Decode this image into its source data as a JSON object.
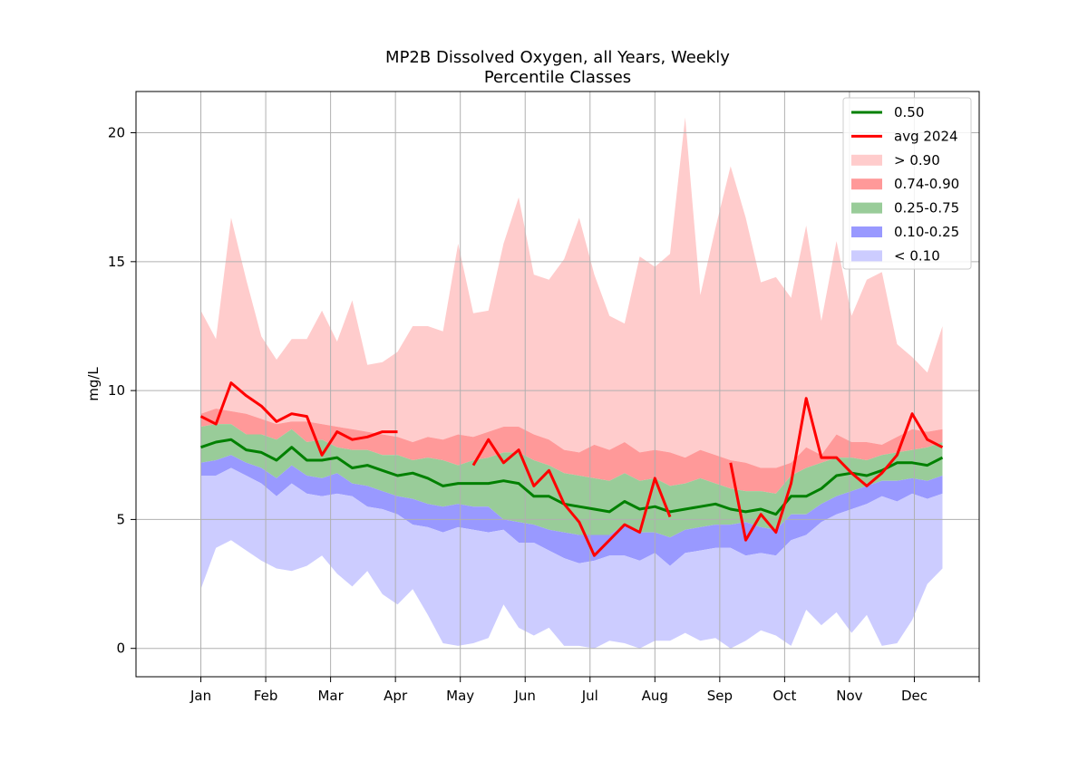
{
  "chart_data": {
    "type": "area",
    "title": "MP2B Dissolved Oxygen, all Years, Weekly",
    "subtitle": "Percentile Classes",
    "xlabel": "",
    "ylabel": "mg/L",
    "ylim": [
      -1.1,
      21.6
    ],
    "xlim": [
      -6,
      72
    ],
    "grid": true,
    "legend_position": "top-right",
    "months": [
      "Jan",
      "Feb",
      "Mar",
      "Apr",
      "May",
      "Jun",
      "Jul",
      "Aug",
      "Sep",
      "Oct",
      "Nov",
      "Dec"
    ],
    "month_positions": [
      0,
      6,
      12,
      18,
      24,
      30,
      36,
      42,
      48,
      54,
      60,
      66,
      72
    ],
    "y_ticks": [
      0,
      5,
      10,
      15,
      20
    ],
    "x": [
      0,
      1.4,
      2.8,
      4.2,
      5.6,
      7,
      8.4,
      9.8,
      11.2,
      12.6,
      14,
      15.4,
      16.8,
      18.2,
      19.6,
      21,
      22.4,
      23.8,
      25.2,
      26.6,
      28,
      29.4,
      30.8,
      32.2,
      33.6,
      35,
      36.4,
      37.8,
      39.2,
      40.6,
      42,
      43.4,
      44.8,
      46.2,
      47.6,
      49,
      50.4,
      51.8,
      53.2,
      54.6,
      56,
      57.4,
      58.8,
      60.2,
      61.6,
      63,
      64.4,
      65.8,
      67.2,
      68.6
    ],
    "bands": [
      {
        "name": "> 0.90",
        "color": "#ffcccc",
        "upper": [
          13.1,
          12.0,
          16.7,
          14.3,
          12.1,
          11.2,
          12.0,
          12.0,
          13.1,
          11.9,
          13.5,
          11.0,
          11.1,
          11.5,
          12.5,
          12.5,
          12.3,
          15.7,
          13.0,
          13.1,
          15.7,
          17.5,
          14.5,
          14.3,
          15.1,
          16.7,
          14.5,
          12.9,
          12.6,
          15.2,
          14.8,
          15.3,
          20.6,
          13.7,
          16.3,
          18.7,
          16.7,
          14.2,
          14.4,
          13.6,
          16.4,
          12.7,
          15.8,
          12.9,
          14.3,
          14.6,
          11.8,
          11.3,
          10.7,
          12.5
        ]
      },
      {
        "name": "0.74-0.90",
        "color": "#ff9999",
        "upper": [
          9.1,
          9.3,
          9.2,
          9.1,
          8.9,
          8.7,
          8.8,
          8.8,
          8.7,
          8.6,
          8.5,
          8.4,
          8.3,
          8.2,
          8.0,
          8.2,
          8.1,
          8.3,
          8.2,
          8.4,
          8.6,
          8.6,
          8.3,
          8.1,
          7.7,
          7.6,
          7.9,
          7.7,
          8.0,
          7.6,
          7.7,
          7.6,
          7.4,
          7.7,
          7.5,
          7.3,
          7.2,
          7.0,
          7.0,
          7.2,
          7.8,
          7.5,
          8.3,
          8.0,
          8.0,
          7.9,
          8.2,
          8.5,
          8.4,
          8.5
        ]
      },
      {
        "name": "0.25-0.75",
        "color": "#99cc99",
        "upper": [
          8.6,
          8.7,
          8.7,
          8.3,
          8.3,
          8.1,
          8.5,
          8.0,
          8.1,
          7.8,
          7.7,
          7.7,
          7.5,
          7.5,
          7.3,
          7.4,
          7.3,
          7.1,
          7.3,
          7.4,
          7.6,
          7.6,
          7.3,
          7.1,
          6.8,
          6.7,
          6.6,
          6.5,
          6.8,
          6.5,
          6.6,
          6.3,
          6.4,
          6.6,
          6.4,
          6.2,
          6.1,
          6.1,
          6.0,
          6.7,
          7.0,
          7.2,
          7.4,
          7.4,
          7.3,
          7.5,
          7.6,
          7.7,
          7.8,
          8.0
        ]
      },
      {
        "name": "0.10-0.25",
        "color": "#9999ff",
        "upper": [
          7.2,
          7.3,
          7.5,
          7.2,
          7.0,
          6.6,
          7.1,
          6.7,
          6.6,
          6.8,
          6.4,
          6.3,
          6.1,
          5.9,
          5.8,
          5.6,
          5.5,
          5.6,
          5.5,
          5.5,
          5.0,
          4.9,
          4.8,
          4.6,
          4.5,
          4.4,
          4.4,
          4.4,
          4.8,
          4.5,
          4.5,
          4.3,
          4.6,
          4.7,
          4.8,
          4.8,
          4.9,
          4.7,
          4.6,
          5.2,
          5.2,
          5.6,
          5.9,
          6.1,
          6.3,
          6.5,
          6.5,
          6.6,
          6.5,
          6.7
        ]
      },
      {
        "name": "< 0.10",
        "color": "#ccccff",
        "upper": [
          6.7,
          6.7,
          7.0,
          6.7,
          6.4,
          5.9,
          6.4,
          6.0,
          5.9,
          6.0,
          5.9,
          5.5,
          5.4,
          5.2,
          4.8,
          4.7,
          4.5,
          4.7,
          4.6,
          4.5,
          4.6,
          4.1,
          4.1,
          3.8,
          3.5,
          3.3,
          3.4,
          3.6,
          3.6,
          3.4,
          3.7,
          3.2,
          3.7,
          3.8,
          3.9,
          3.9,
          3.6,
          3.7,
          3.6,
          4.2,
          4.4,
          4.9,
          5.2,
          5.4,
          5.6,
          5.9,
          5.7,
          6.0,
          5.8,
          6.0
        ],
        "lower": [
          2.3,
          3.9,
          4.2,
          3.8,
          3.4,
          3.1,
          3.0,
          3.2,
          3.6,
          2.9,
          2.4,
          3.0,
          2.1,
          1.7,
          2.3,
          1.3,
          0.2,
          0.1,
          0.2,
          0.4,
          1.7,
          0.8,
          0.5,
          0.8,
          0.1,
          0.1,
          0.0,
          0.3,
          0.2,
          0.0,
          0.3,
          0.3,
          0.6,
          0.3,
          0.4,
          0.0,
          0.3,
          0.7,
          0.5,
          0.1,
          1.5,
          0.9,
          1.4,
          0.6,
          1.3,
          0.1,
          0.2,
          1.1,
          2.5,
          3.1
        ]
      }
    ],
    "series": [
      {
        "name": "0.50",
        "color": "#008000",
        "values": [
          7.8,
          8.0,
          8.1,
          7.7,
          7.6,
          7.3,
          7.8,
          7.3,
          7.3,
          7.4,
          7.0,
          7.1,
          6.9,
          6.7,
          6.8,
          6.6,
          6.3,
          6.4,
          6.4,
          6.4,
          6.5,
          6.4,
          5.9,
          5.9,
          5.6,
          5.5,
          5.4,
          5.3,
          5.7,
          5.4,
          5.5,
          5.3,
          5.4,
          5.5,
          5.6,
          5.4,
          5.3,
          5.4,
          5.2,
          5.9,
          5.9,
          6.2,
          6.7,
          6.8,
          6.7,
          6.9,
          7.2,
          7.2,
          7.1,
          7.4
        ]
      },
      {
        "name": "avg 2024",
        "color": "#ff0000",
        "values": [
          9.0,
          8.7,
          10.3,
          9.8,
          9.4,
          8.8,
          9.1,
          9.0,
          7.5,
          8.4,
          8.1,
          8.2,
          8.4,
          8.4,
          null,
          null,
          null,
          null,
          7.1,
          8.1,
          7.2,
          7.7,
          6.3,
          6.9,
          5.6,
          4.9,
          3.6,
          4.2,
          4.8,
          4.5,
          6.6,
          5.1,
          null,
          null,
          null,
          7.2,
          4.2,
          5.2,
          4.5,
          6.4,
          9.7,
          7.4,
          7.4,
          6.8,
          6.3,
          6.8,
          7.5,
          9.1,
          8.1,
          7.8
        ]
      }
    ]
  },
  "legend": [
    {
      "label": "0.50",
      "kind": "line",
      "color": "#008000"
    },
    {
      "label": "avg 2024",
      "kind": "line",
      "color": "#ff0000"
    },
    {
      "label": "> 0.90",
      "kind": "patch",
      "color": "#ffcccc"
    },
    {
      "label": "0.74-0.90",
      "kind": "patch",
      "color": "#ff9999"
    },
    {
      "label": "0.25-0.75",
      "kind": "patch",
      "color": "#99cc99"
    },
    {
      "label": "0.10-0.25",
      "kind": "patch",
      "color": "#9999ff"
    },
    {
      "label": "< 0.10",
      "kind": "patch",
      "color": "#ccccff"
    }
  ]
}
